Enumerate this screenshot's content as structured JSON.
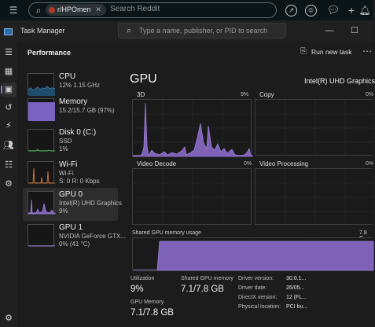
{
  "browser": {
    "community_chip": "r/HPOmen",
    "search_placeholder": "Search Reddit"
  },
  "window": {
    "title": "Task Manager",
    "search_placeholder": "Type a name, publisher, or PID to search"
  },
  "header": {
    "page_title": "Performance",
    "run_new_task": "Run new task"
  },
  "left_items": [
    {
      "name": "CPU",
      "line1": "12%  1.15 GHz",
      "line2": "",
      "color": "#4aa3df"
    },
    {
      "name": "Memory",
      "line1": "15.2/15.7 GB (97%)",
      "line2": "",
      "color": "#8e6bd6"
    },
    {
      "name": "Disk 0 (C:)",
      "line1": "SSD",
      "line2": "1%",
      "color": "#3fb34f"
    },
    {
      "name": "Wi-Fi",
      "line1": "Wi-Fi",
      "line2": "S: 0  R: 0 Kbps",
      "color": "#c16f3e"
    },
    {
      "name": "GPU 0",
      "line1": "Intel(R) UHD Graphics",
      "line2": "9%",
      "color": "#9b7fd6"
    },
    {
      "name": "GPU 1",
      "line1": "NVIDIA GeForce GTX...",
      "line2": "0%  (41 °C)",
      "color": "#9b7fd6"
    }
  ],
  "gpu": {
    "title": "GPU",
    "model": "Intel(R) UHD Graphics",
    "engines": [
      {
        "label": "3D",
        "percent": "9%"
      },
      {
        "label": "Copy",
        "percent": "0%"
      },
      {
        "label": "Video Decode",
        "percent": "0%"
      },
      {
        "label": "Video Processing",
        "percent": "0%"
      }
    ],
    "shared_memory_label": "Shared GPU memory usage",
    "shared_memory_max": "7.8 G",
    "utilization_label": "Utilization",
    "utilization_value": "9%",
    "shared_gpu_memory_label": "Shared GPU memory",
    "shared_gpu_memory_value": "7.1/7.8 GB",
    "gpu_memory_label": "GPU Memory",
    "gpu_memory_value": "7.1/7.8 GB",
    "details": [
      {
        "key": "Driver version:",
        "value": "30.0.1..."
      },
      {
        "key": "Driver date:",
        "value": "26/05..."
      },
      {
        "key": "DirectX version:",
        "value": "12 (FL..."
      },
      {
        "key": "Physical location:",
        "value": "PCI bu..."
      }
    ]
  },
  "colors": {
    "accent": "#9b7fd6",
    "graph_fill": "#7d62b8"
  }
}
